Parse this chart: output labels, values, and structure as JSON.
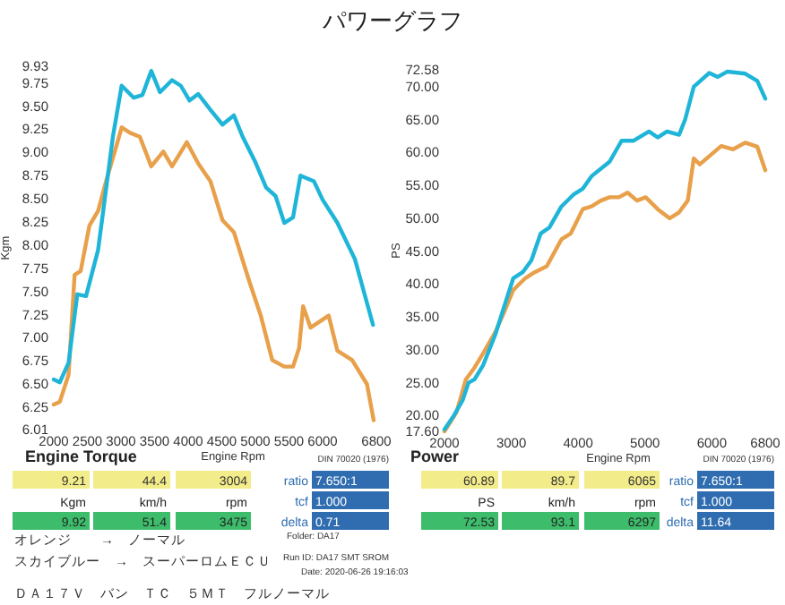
{
  "chart_data": [
    {
      "type": "line",
      "title": "パワーグラフ",
      "xlabel": "Engine Rpm",
      "ylabel": "Kgm",
      "xlim": [
        2000,
        6800
      ],
      "xticks": [
        2000,
        2500,
        3000,
        3500,
        4000,
        4500,
        5000,
        5500,
        6000,
        6800
      ],
      "ylim": [
        6.01,
        9.93
      ],
      "yticks": [
        6.01,
        6.25,
        {
          "value": 6.5,
          "label": "6.50"
        },
        {
          "value": 6.75,
          "label": "6.75"
        },
        {
          "value": 7,
          "label": "7.00"
        },
        {
          "value": 7.25,
          "label": "7.25"
        },
        {
          "value": 7.5,
          "label": "7.50"
        },
        {
          "value": 7.75,
          "label": "7.75"
        },
        {
          "value": 8,
          "label": "8.00"
        },
        {
          "value": 8.25,
          "label": "8.25"
        },
        {
          "value": 8.5,
          "label": "8.50"
        },
        {
          "value": 8.75,
          "label": "8.75"
        },
        {
          "value": 9,
          "label": "9.00"
        },
        {
          "value": 9.25,
          "label": "9.25"
        },
        {
          "value": 9.5,
          "label": "9.50"
        },
        {
          "value": 9.75,
          "label": "9.75"
        },
        9.93
      ],
      "grid": false,
      "line_style": "solid",
      "marker": "none",
      "series": [
        {
          "color": "#e8a04a",
          "x": [
            2000,
            2090,
            2220,
            2310,
            2400,
            2530,
            2660,
            2790,
            2920,
            3010,
            3140,
            3280,
            3450,
            3630,
            3760,
            3980,
            4150,
            4330,
            4510,
            4680,
            4900,
            5080,
            5250,
            5430,
            5560,
            5650,
            5710,
            5820,
            6090,
            6220,
            6440,
            6660,
            6760
          ],
          "values": [
            6.28,
            6.31,
            6.6,
            7.68,
            7.72,
            8.21,
            8.37,
            8.72,
            9.04,
            9.27,
            9.21,
            9.17,
            8.85,
            9.01,
            8.85,
            9.11,
            8.88,
            8.69,
            8.27,
            8.14,
            7.63,
            7.24,
            6.76,
            6.69,
            6.69,
            6.89,
            7.34,
            7.11,
            7.24,
            6.86,
            6.76,
            6.5,
            6.11
          ]
        },
        {
          "color": "#1fb5d8",
          "x": [
            2000,
            2090,
            2220,
            2350,
            2480,
            2660,
            2880,
            3010,
            3190,
            3320,
            3450,
            3580,
            3760,
            3890,
            4020,
            4150,
            4330,
            4510,
            4680,
            4810,
            4990,
            5160,
            5300,
            5430,
            5560,
            5670,
            5870,
            6000,
            6220,
            6480,
            6750
          ],
          "values": [
            6.55,
            6.52,
            6.73,
            7.47,
            7.45,
            7.95,
            9.17,
            9.72,
            9.59,
            9.62,
            9.88,
            9.65,
            9.78,
            9.72,
            9.56,
            9.63,
            9.46,
            9.3,
            9.4,
            9.17,
            8.91,
            8.62,
            8.53,
            8.24,
            8.3,
            8.75,
            8.69,
            8.49,
            8.24,
            7.85,
            7.14
          ]
        }
      ],
      "annotations": [
        "Engine Torque",
        "DIN 70020 (1976)",
        "9.21",
        "44.4",
        "3004",
        "Kgm",
        "km/h",
        "rpm",
        "9.92",
        "51.4",
        "3475",
        "ratio",
        "7.650:1",
        "tcf",
        "1.000",
        "delta",
        "0.71",
        "オレンジ　　→　ノーマル",
        "スカイブルー　→　スーパーロムＥＣＵ",
        "Folder: DA17",
        "Run ID: DA17 SMT SROM",
        "Date: 2020-06-26 19:16:03",
        "ＤＡ１７Ｖ　バン　ＴＣ　５ＭＴ　フルノーマル"
      ]
    },
    {
      "type": "line",
      "xlabel": "Engine Rpm",
      "ylabel": "PS",
      "xlim": [
        2000,
        6800
      ],
      "xticks": [
        2000,
        3000,
        4000,
        5000,
        6000,
        6800
      ],
      "ylim": [
        17.6,
        72.58
      ],
      "yticks": [
        {
          "value": 17.6,
          "label": "17.60"
        },
        {
          "value": 20,
          "label": "20.00"
        },
        {
          "value": 25,
          "label": "25.00"
        },
        {
          "value": 30,
          "label": "30.00"
        },
        {
          "value": 35,
          "label": "35.00"
        },
        {
          "value": 40,
          "label": "40.00"
        },
        {
          "value": 45,
          "label": "45.00"
        },
        {
          "value": 50,
          "label": "50.00"
        },
        {
          "value": 55,
          "label": "55.00"
        },
        {
          "value": 60,
          "label": "60.00"
        },
        {
          "value": 65,
          "label": "65.00"
        },
        {
          "value": 70,
          "label": "70.00"
        },
        72.58
      ],
      "grid": false,
      "line_style": "solid",
      "marker": "none",
      "series": [
        {
          "color": "#e8a04a",
          "x": [
            2000,
            2180,
            2320,
            2450,
            2580,
            2760,
            2900,
            3030,
            3210,
            3350,
            3530,
            3750,
            3890,
            4070,
            4200,
            4340,
            4470,
            4610,
            4740,
            4880,
            5010,
            5190,
            5370,
            5510,
            5640,
            5730,
            5820,
            6140,
            6320,
            6500,
            6680,
            6800
          ],
          "values": [
            17.6,
            20.5,
            25.5,
            27.3,
            29.5,
            32.7,
            35.9,
            39.1,
            40.9,
            41.8,
            42.7,
            46.8,
            47.7,
            51.4,
            51.8,
            52.7,
            53.2,
            53.2,
            53.9,
            52.7,
            53.2,
            51.4,
            50.0,
            50.9,
            52.7,
            59.1,
            58.2,
            61.0,
            60.5,
            61.5,
            60.9,
            57.3
          ]
        },
        {
          "color": "#1fb5d8",
          "x": [
            2000,
            2140,
            2270,
            2360,
            2450,
            2580,
            2760,
            2900,
            3030,
            3170,
            3300,
            3440,
            3570,
            3750,
            3930,
            4070,
            4200,
            4470,
            4650,
            4830,
            5060,
            5190,
            5330,
            5510,
            5600,
            5730,
            5960,
            6090,
            6230,
            6500,
            6680,
            6800
          ],
          "values": [
            17.9,
            20.0,
            22.3,
            25.0,
            25.5,
            27.7,
            32.3,
            36.8,
            40.9,
            41.8,
            43.6,
            47.7,
            48.6,
            51.8,
            53.6,
            54.5,
            56.4,
            58.6,
            61.8,
            61.8,
            63.2,
            62.3,
            63.2,
            62.7,
            65.0,
            70.0,
            72.1,
            71.5,
            72.3,
            72.0,
            70.9,
            68.2
          ]
        }
      ],
      "annotations": [
        "Power",
        "DIN 70020 (1976)",
        "60.89",
        "89.7",
        "6065",
        "PS",
        "km/h",
        "rpm",
        "72.53",
        "93.1",
        "6297",
        "ratio",
        "7.650:1",
        "tcf",
        "1.000",
        "delta",
        "11.64"
      ]
    }
  ]
}
